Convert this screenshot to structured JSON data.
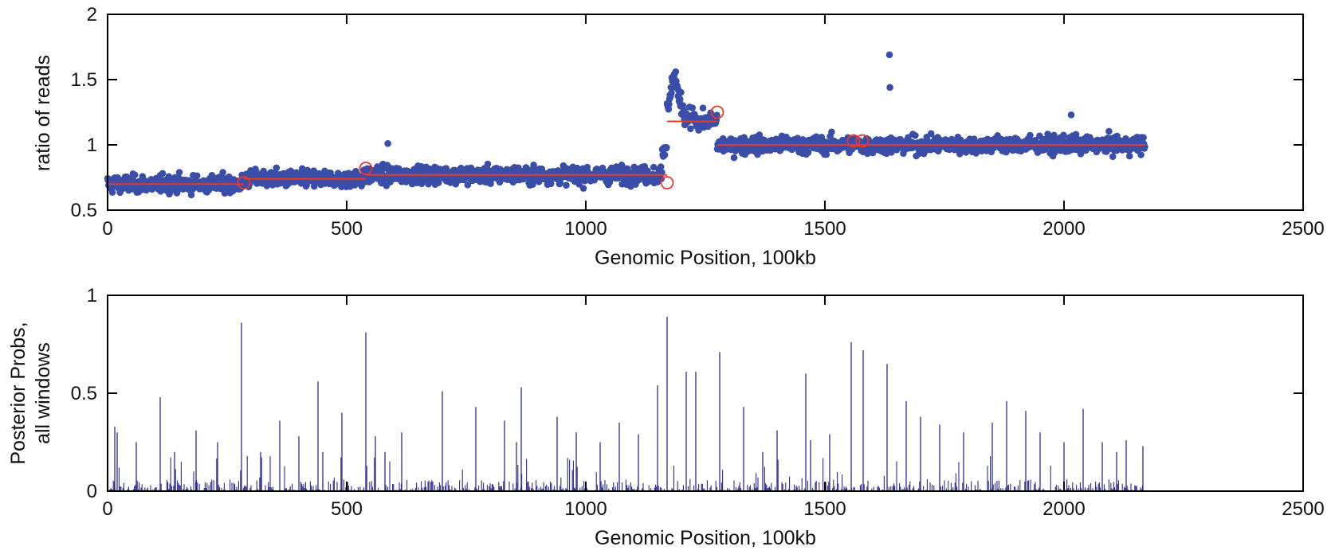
{
  "chart_data": [
    {
      "type": "scatter",
      "title": "",
      "xlabel": "Genomic Position, 100kb",
      "ylabel": "ratio of reads",
      "xlim": [
        0,
        2500
      ],
      "ylim": [
        0.5,
        2
      ],
      "xticks": [
        0,
        500,
        1000,
        1500,
        2000,
        2500
      ],
      "xtick_labels": [
        "0",
        "500",
        "1000",
        "1500",
        "2000",
        "2500"
      ],
      "yticks": [
        0.5,
        1,
        1.5,
        2
      ],
      "ytick_labels": [
        "0.5",
        "1",
        "1.5",
        "2"
      ],
      "colors": {
        "points": "#3a4ea8",
        "segments": "#e8392e",
        "breakpoints": "#e8392e"
      },
      "series": [
        {
          "name": "ratio of reads (windowed)",
          "kind": "noisy-points",
          "n_points": 2170,
          "segments_ref": "segments",
          "noise_sd": 0.055,
          "spike_region": {
            "x": [
              1170,
              1230
            ],
            "peak": 1.5
          },
          "outliers": [
            {
              "x": 1635,
              "y": 1.69
            },
            {
              "x": 1636,
              "y": 1.44
            },
            {
              "x": 2015,
              "y": 1.23
            },
            {
              "x": 586,
              "y": 1.01
            },
            {
              "x": 1188,
              "y": 1.56
            }
          ]
        },
        {
          "name": "segment means",
          "kind": "segments",
          "segments": [
            {
              "x0": 0,
              "x1": 285,
              "y": 0.7
            },
            {
              "x0": 285,
              "x1": 540,
              "y": 0.74
            },
            {
              "x0": 540,
              "x1": 1170,
              "y": 0.77
            },
            {
              "x0": 1170,
              "x1": 1275,
              "y": 1.18
            },
            {
              "x0": 1275,
              "x1": 2170,
              "y": 1.0
            }
          ]
        },
        {
          "name": "breakpoints",
          "kind": "circles",
          "points": [
            {
              "x": 285,
              "y": 0.71
            },
            {
              "x": 540,
              "y": 0.82
            },
            {
              "x": 1170,
              "y": 0.71
            },
            {
              "x": 1275,
              "y": 1.25
            },
            {
              "x": 1560,
              "y": 1.03
            },
            {
              "x": 1578,
              "y": 1.03
            }
          ]
        }
      ]
    },
    {
      "type": "bar",
      "title": "",
      "xlabel": "Genomic Position, 100kb",
      "ylabel": [
        "Posterior Probs,",
        "all windows"
      ],
      "xlim": [
        0,
        2500
      ],
      "ylim": [
        0,
        1
      ],
      "xticks": [
        0,
        500,
        1000,
        1500,
        2000,
        2500
      ],
      "xtick_labels": [
        "0",
        "500",
        "1000",
        "1500",
        "2000",
        "2500"
      ],
      "yticks": [
        0,
        0.5,
        1
      ],
      "ytick_labels": [
        "0",
        "0.5",
        "1"
      ],
      "colors": {
        "bars": "#2d2b8f"
      },
      "n_windows": 2170,
      "baseline_max": 0.06,
      "peaks": [
        {
          "x": 15,
          "y": 0.33
        },
        {
          "x": 20,
          "y": 0.3
        },
        {
          "x": 60,
          "y": 0.25
        },
        {
          "x": 110,
          "y": 0.48
        },
        {
          "x": 140,
          "y": 0.2
        },
        {
          "x": 185,
          "y": 0.31
        },
        {
          "x": 230,
          "y": 0.25
        },
        {
          "x": 280,
          "y": 0.86
        },
        {
          "x": 320,
          "y": 0.2
        },
        {
          "x": 360,
          "y": 0.36
        },
        {
          "x": 400,
          "y": 0.28
        },
        {
          "x": 440,
          "y": 0.56
        },
        {
          "x": 450,
          "y": 0.2
        },
        {
          "x": 490,
          "y": 0.4
        },
        {
          "x": 540,
          "y": 0.81
        },
        {
          "x": 560,
          "y": 0.28
        },
        {
          "x": 580,
          "y": 0.2
        },
        {
          "x": 615,
          "y": 0.3
        },
        {
          "x": 700,
          "y": 0.51
        },
        {
          "x": 770,
          "y": 0.43
        },
        {
          "x": 830,
          "y": 0.36
        },
        {
          "x": 855,
          "y": 0.25
        },
        {
          "x": 865,
          "y": 0.53
        },
        {
          "x": 940,
          "y": 0.38
        },
        {
          "x": 980,
          "y": 0.3
        },
        {
          "x": 1030,
          "y": 0.25
        },
        {
          "x": 1070,
          "y": 0.35
        },
        {
          "x": 1110,
          "y": 0.29
        },
        {
          "x": 1150,
          "y": 0.54
        },
        {
          "x": 1170,
          "y": 0.89
        },
        {
          "x": 1210,
          "y": 0.61
        },
        {
          "x": 1230,
          "y": 0.61
        },
        {
          "x": 1280,
          "y": 0.71
        },
        {
          "x": 1330,
          "y": 0.43
        },
        {
          "x": 1370,
          "y": 0.2
        },
        {
          "x": 1400,
          "y": 0.31
        },
        {
          "x": 1460,
          "y": 0.6
        },
        {
          "x": 1470,
          "y": 0.26
        },
        {
          "x": 1510,
          "y": 0.29
        },
        {
          "x": 1555,
          "y": 0.76
        },
        {
          "x": 1580,
          "y": 0.72
        },
        {
          "x": 1630,
          "y": 0.65
        },
        {
          "x": 1670,
          "y": 0.46
        },
        {
          "x": 1700,
          "y": 0.38
        },
        {
          "x": 1740,
          "y": 0.34
        },
        {
          "x": 1790,
          "y": 0.3
        },
        {
          "x": 1850,
          "y": 0.35
        },
        {
          "x": 1880,
          "y": 0.46
        },
        {
          "x": 1920,
          "y": 0.41
        },
        {
          "x": 1950,
          "y": 0.3
        },
        {
          "x": 2000,
          "y": 0.25
        },
        {
          "x": 2040,
          "y": 0.42
        },
        {
          "x": 2080,
          "y": 0.25
        },
        {
          "x": 2110,
          "y": 0.2
        },
        {
          "x": 2130,
          "y": 0.26
        },
        {
          "x": 2165,
          "y": 0.23
        }
      ]
    }
  ]
}
